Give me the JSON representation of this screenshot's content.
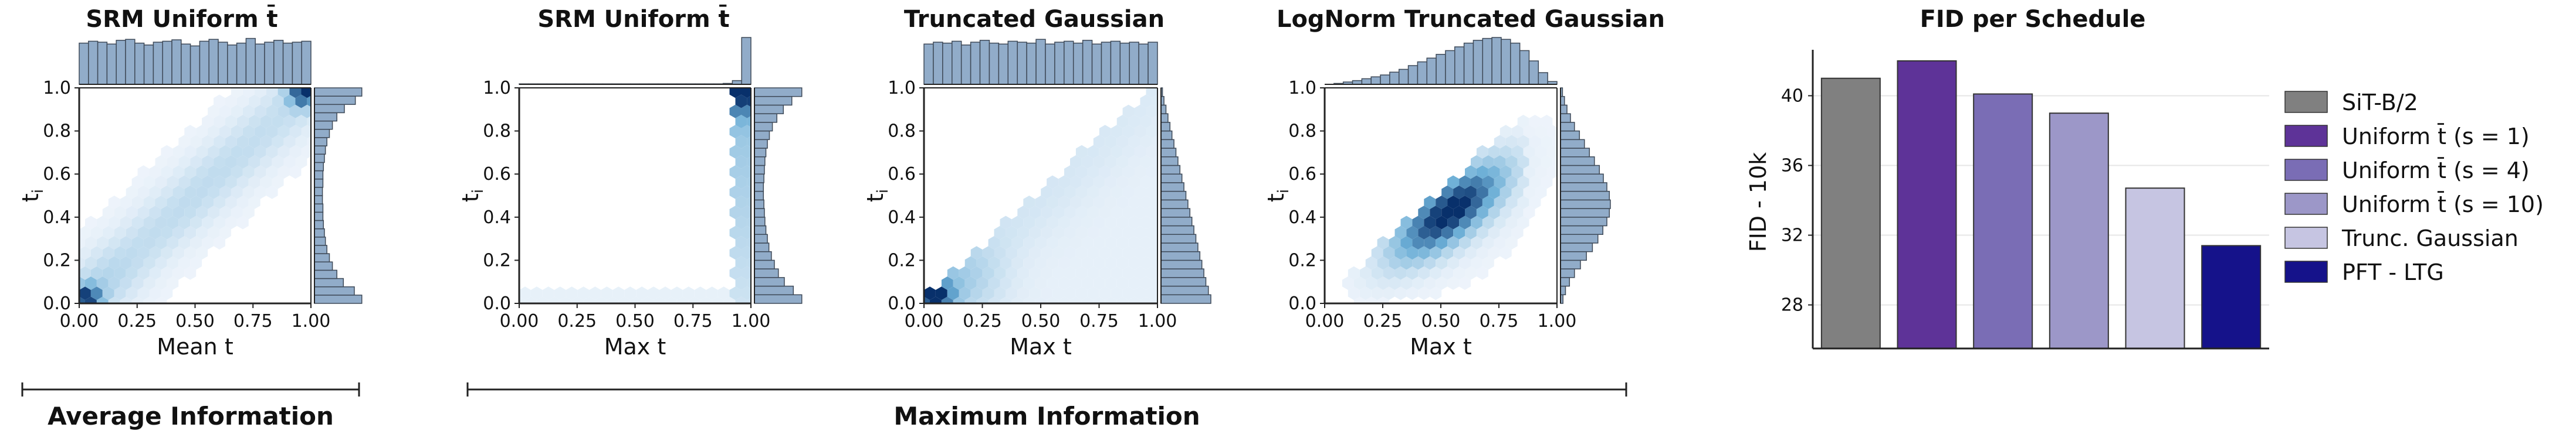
{
  "chart_data": [
    {
      "type": "hexbin-joint",
      "title": "SRM Uniform t̄",
      "xlabel": "Mean t",
      "ylabel": "t_i",
      "xlim": [
        0,
        1
      ],
      "ylim": [
        0,
        1
      ],
      "xticks": [
        "0.00",
        "0.25",
        "0.50",
        "0.75",
        "1.00"
      ],
      "yticks": [
        "0.0",
        "0.2",
        "0.4",
        "0.6",
        "0.8",
        "1.0"
      ],
      "pattern": "diagonal band, dense at both ends",
      "top_marginal": [
        0.88,
        0.92,
        0.9,
        0.86,
        0.94,
        0.96,
        0.88,
        0.84,
        0.9,
        0.92,
        0.95,
        0.86,
        0.82,
        0.92,
        0.96,
        0.9,
        0.84,
        0.88,
        0.98,
        0.86,
        0.9,
        0.94,
        0.88,
        0.9,
        0.92
      ],
      "right_marginal": [
        0.95,
        0.8,
        0.58,
        0.45,
        0.36,
        0.3,
        0.25,
        0.22,
        0.2,
        0.18,
        0.17,
        0.17,
        0.16,
        0.16,
        0.17,
        0.17,
        0.18,
        0.2,
        0.22,
        0.25,
        0.3,
        0.36,
        0.45,
        0.6,
        0.82,
        0.95
      ]
    },
    {
      "type": "hexbin-joint",
      "title": "SRM Uniform t̄",
      "xlabel": "Max t",
      "ylabel": "t_i",
      "xlim": [
        0,
        1
      ],
      "ylim": [
        0,
        1
      ],
      "xticks": [
        "0.00",
        "0.25",
        "0.50",
        "0.75",
        "1.00"
      ],
      "yticks": [
        "0.0",
        "0.2",
        "0.4",
        "0.6",
        "0.8",
        "1.0"
      ],
      "pattern": "mass concentrated at max t = 1",
      "top_marginal": [
        0.01,
        0.01,
        0.01,
        0.01,
        0.01,
        0.01,
        0.01,
        0.01,
        0.01,
        0.01,
        0.01,
        0.01,
        0.01,
        0.01,
        0.01,
        0.01,
        0.01,
        0.01,
        0.01,
        0.01,
        0.01,
        0.01,
        0.02,
        0.08,
        1.0
      ],
      "right_marginal": [
        0.95,
        0.78,
        0.6,
        0.48,
        0.4,
        0.34,
        0.29,
        0.26,
        0.23,
        0.21,
        0.2,
        0.19,
        0.18,
        0.18,
        0.19,
        0.2,
        0.21,
        0.23,
        0.26,
        0.3,
        0.36,
        0.45,
        0.58,
        0.75,
        0.95
      ]
    },
    {
      "type": "hexbin-joint",
      "title": "Truncated Gaussian",
      "xlabel": "Max t",
      "ylabel": "t_i",
      "xlim": [
        0,
        1
      ],
      "ylim": [
        0,
        1
      ],
      "xticks": [
        "0.00",
        "0.25",
        "0.50",
        "0.75",
        "1.00"
      ],
      "yticks": [
        "0.0",
        "0.2",
        "0.4",
        "0.6",
        "0.8",
        "1.0"
      ],
      "pattern": "lower triangle t_i <= max t, dense near origin",
      "top_marginal": [
        0.86,
        0.9,
        0.88,
        0.92,
        0.84,
        0.9,
        0.94,
        0.88,
        0.86,
        0.92,
        0.9,
        0.88,
        0.96,
        0.86,
        0.9,
        0.92,
        0.88,
        0.94,
        0.86,
        0.9,
        0.92,
        0.88,
        0.9,
        0.86,
        0.9
      ],
      "right_marginal": [
        1.0,
        0.95,
        0.9,
        0.86,
        0.82,
        0.78,
        0.74,
        0.7,
        0.66,
        0.62,
        0.58,
        0.54,
        0.5,
        0.46,
        0.42,
        0.38,
        0.34,
        0.3,
        0.26,
        0.22,
        0.18,
        0.14,
        0.1,
        0.06,
        0.03
      ]
    },
    {
      "type": "hexbin-joint",
      "title": "LogNorm Truncated Gaussian",
      "xlabel": "Max t",
      "ylabel": "t_i",
      "xlim": [
        0,
        1
      ],
      "ylim": [
        0,
        1
      ],
      "xticks": [
        "0.00",
        "0.25",
        "0.50",
        "0.75",
        "1.00"
      ],
      "yticks": [
        "0.0",
        "0.2",
        "0.4",
        "0.6",
        "0.8",
        "1.0"
      ],
      "pattern": "lower triangle, dense band in mid range",
      "top_marginal": [
        0.0,
        0.02,
        0.05,
        0.08,
        0.12,
        0.16,
        0.2,
        0.26,
        0.32,
        0.4,
        0.48,
        0.56,
        0.64,
        0.72,
        0.8,
        0.88,
        0.94,
        0.98,
        1.0,
        0.96,
        0.88,
        0.72,
        0.5,
        0.25,
        0.06
      ],
      "right_marginal": [
        0.05,
        0.1,
        0.18,
        0.28,
        0.4,
        0.52,
        0.64,
        0.75,
        0.85,
        0.93,
        0.98,
        1.0,
        0.98,
        0.93,
        0.86,
        0.78,
        0.68,
        0.58,
        0.48,
        0.38,
        0.28,
        0.2,
        0.13,
        0.08,
        0.04
      ]
    },
    {
      "type": "bar",
      "title": "FID per Schedule",
      "xlabel": "",
      "ylabel": "FID - 10k",
      "ylim": [
        25.5,
        42.3
      ],
      "yticks": [
        "28",
        "32",
        "36",
        "40"
      ],
      "grid": true,
      "legend_position": "right",
      "series": [
        {
          "name": "SiT-B/2",
          "value": 41.0,
          "color": "#808080"
        },
        {
          "name": "Uniform t̄ (s = 1)",
          "value": 42.0,
          "color": "#5e3398"
        },
        {
          "name": "Uniform t̄ (s = 4)",
          "value": 40.1,
          "color": "#7a6db5"
        },
        {
          "name": "Uniform t̄ (s = 10)",
          "value": 39.0,
          "color": "#9c97c8"
        },
        {
          "name": "Trunc. Gaussian",
          "value": 34.7,
          "color": "#c6c5e2"
        },
        {
          "name": "PFT - LTG",
          "value": 31.4,
          "color": "#15128a"
        }
      ]
    }
  ],
  "group_labels": {
    "average": "Average Information",
    "maximum": "Maximum Information"
  },
  "colors": {
    "marginal_fill": "#91acc9",
    "marginal_edge": "#3f4a58",
    "hex_dark": "#08306b",
    "hex_light": "#eef4fb",
    "axis": "#222222",
    "grid": "#e6e6e6"
  }
}
